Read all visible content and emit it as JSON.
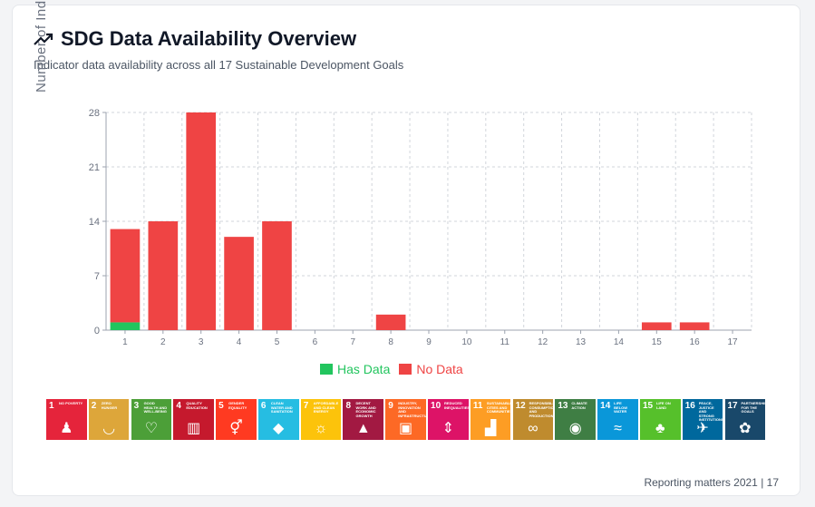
{
  "header": {
    "title": "SDG Data Availability Overview",
    "subtitle": "Indicator data availability across all 17 Sustainable Development Goals",
    "icon": "trending-up-icon"
  },
  "chart_data": {
    "type": "bar",
    "stacked": true,
    "categories": [
      "1",
      "2",
      "3",
      "4",
      "5",
      "6",
      "7",
      "8",
      "9",
      "10",
      "11",
      "12",
      "13",
      "14",
      "15",
      "16",
      "17"
    ],
    "series": [
      {
        "name": "Has Data",
        "color": "#22c55e",
        "values": [
          1,
          0,
          0,
          0,
          0,
          0,
          0,
          0,
          0,
          0,
          0,
          0,
          0,
          0,
          0,
          0,
          0
        ]
      },
      {
        "name": "No Data",
        "color": "#ef4444",
        "values": [
          12,
          14,
          28,
          12,
          14,
          0,
          0,
          2,
          0,
          0,
          0,
          0,
          0,
          0,
          1,
          1,
          0
        ]
      }
    ],
    "ylabel": "Number of Indicators",
    "xlabel": "",
    "ylim": [
      0,
      28
    ],
    "yticks": [
      "0",
      "7",
      "14",
      "21",
      "28"
    ],
    "grid": true,
    "legend_position": "bottom-center"
  },
  "sdg_icons": [
    {
      "num": "1",
      "label": "No Poverty",
      "color": "#e5243b",
      "glyph": "♟"
    },
    {
      "num": "2",
      "label": "Zero Hunger",
      "color": "#dda63a",
      "glyph": "◡"
    },
    {
      "num": "3",
      "label": "Good Health and Well-being",
      "color": "#4c9f38",
      "glyph": "♡"
    },
    {
      "num": "4",
      "label": "Quality Education",
      "color": "#c5192d",
      "glyph": "▥"
    },
    {
      "num": "5",
      "label": "Gender Equality",
      "color": "#ff3a21",
      "glyph": "⚥"
    },
    {
      "num": "6",
      "label": "Clean Water and Sanitation",
      "color": "#26bde2",
      "glyph": "◆"
    },
    {
      "num": "7",
      "label": "Affordable and Clean Energy",
      "color": "#fcc30b",
      "glyph": "☼"
    },
    {
      "num": "8",
      "label": "Decent Work and Economic Growth",
      "color": "#a21942",
      "glyph": "▲"
    },
    {
      "num": "9",
      "label": "Industry, Innovation and Infrastructure",
      "color": "#fd6925",
      "glyph": "▣"
    },
    {
      "num": "10",
      "label": "Reduced Inequalities",
      "color": "#dd1367",
      "glyph": "⇕"
    },
    {
      "num": "11",
      "label": "Sustainable Cities and Communities",
      "color": "#fd9d24",
      "glyph": "▟"
    },
    {
      "num": "12",
      "label": "Responsible Consumption and Production",
      "color": "#bf8b2e",
      "glyph": "∞"
    },
    {
      "num": "13",
      "label": "Climate Action",
      "color": "#3f7e44",
      "glyph": "◉"
    },
    {
      "num": "14",
      "label": "Life Below Water",
      "color": "#0a97d9",
      "glyph": "≈"
    },
    {
      "num": "15",
      "label": "Life on Land",
      "color": "#56c02b",
      "glyph": "♣"
    },
    {
      "num": "16",
      "label": "Peace, Justice and Strong Institutions",
      "color": "#00689d",
      "glyph": "✈"
    },
    {
      "num": "17",
      "label": "Partnerships for the Goals",
      "color": "#19486a",
      "glyph": "✿"
    }
  ],
  "footer": {
    "text": "Reporting matters 2021 | 17"
  }
}
